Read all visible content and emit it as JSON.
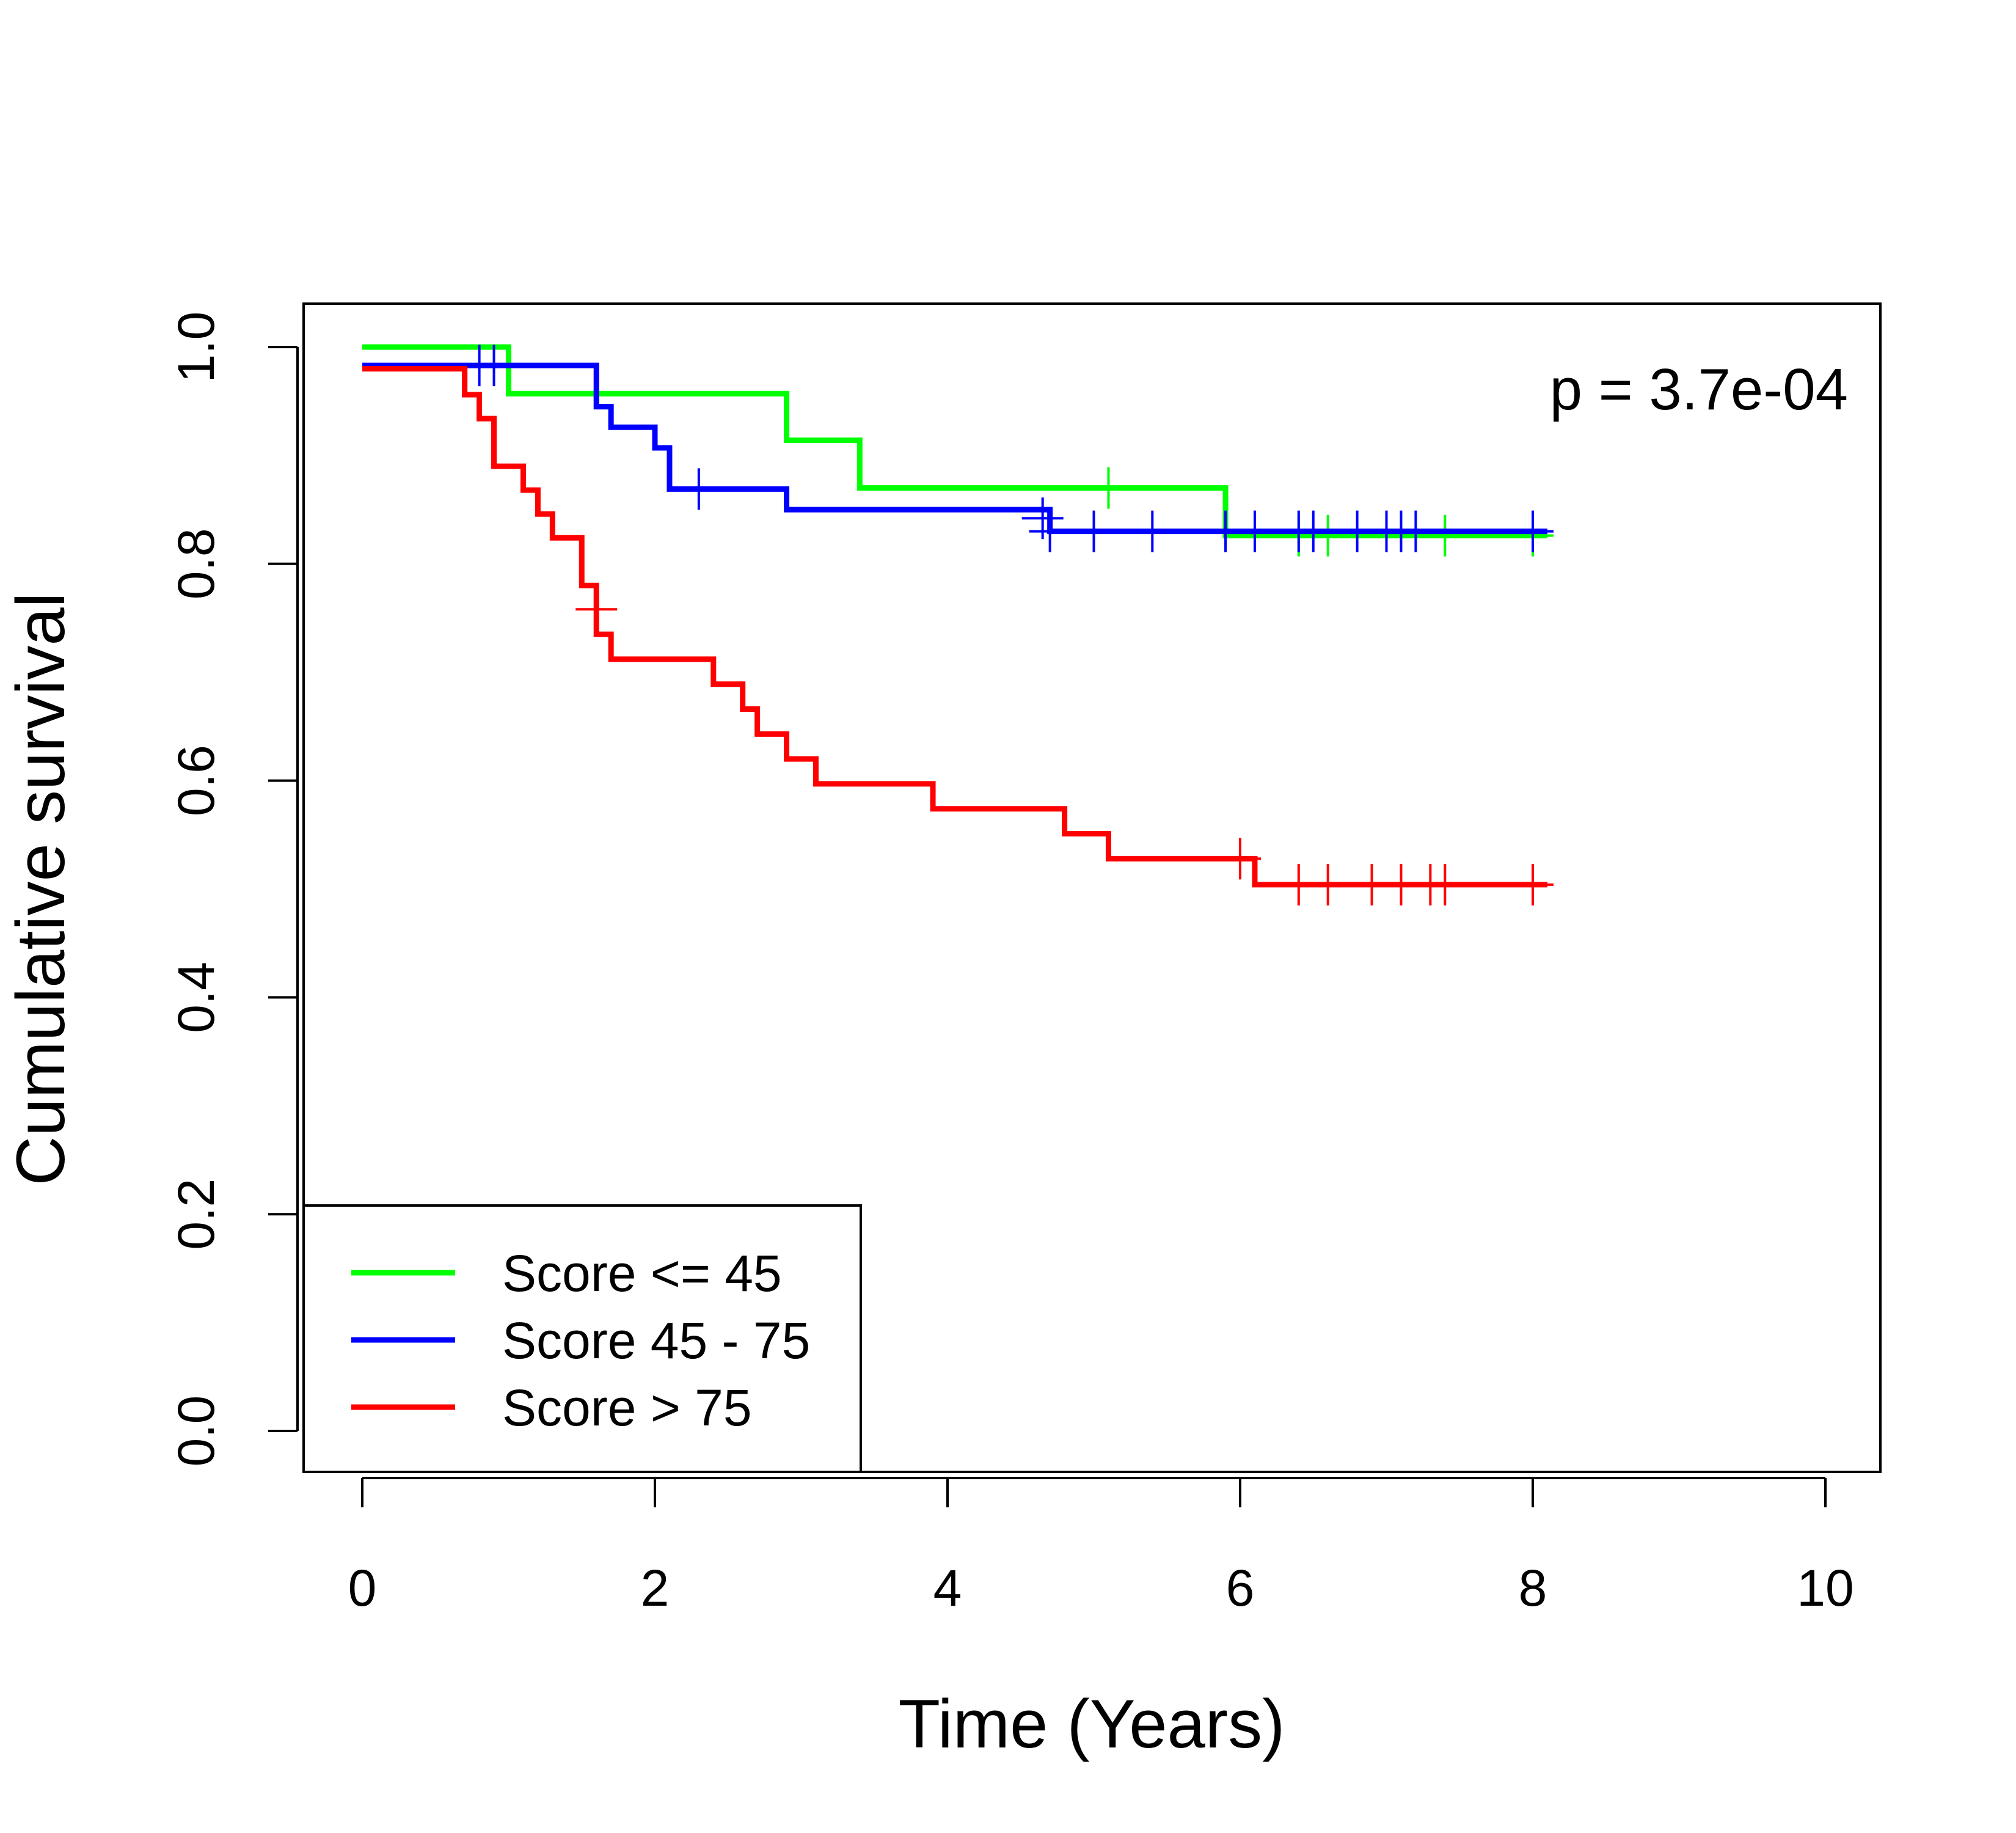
{
  "chart_data": {
    "type": "line",
    "subtype": "kaplan-meier",
    "title": "",
    "xlabel": "Time (Years)",
    "ylabel": "Cumulative survival",
    "xlim": [
      -0.4,
      10.4
    ],
    "ylim": [
      -0.04,
      1.04
    ],
    "x_ticks": [
      0,
      2,
      4,
      6,
      8,
      10
    ],
    "x_tick_labels": [
      "0",
      "2",
      "4",
      "6",
      "8",
      "10"
    ],
    "y_ticks": [
      0.0,
      0.2,
      0.4,
      0.6,
      0.8,
      1.0
    ],
    "y_tick_labels": [
      "0.0",
      "0.2",
      "0.4",
      "0.6",
      "0.8",
      "1.0"
    ],
    "grid": false,
    "legend_position": "bottom-left",
    "annotation": "p = 3.7e-04",
    "series": [
      {
        "name": "Score <= 45",
        "color": "#00ff00",
        "steps": [
          [
            0,
            1.0
          ],
          [
            1.0,
            0.957
          ],
          [
            2.9,
            0.914
          ],
          [
            3.4,
            0.87
          ],
          [
            5.9,
            0.826
          ],
          [
            8.1,
            0.826
          ]
        ],
        "censored": [
          [
            5.1,
            0.87
          ],
          [
            6.4,
            0.826
          ],
          [
            6.6,
            0.826
          ],
          [
            7.4,
            0.826
          ],
          [
            8.0,
            0.826
          ]
        ]
      },
      {
        "name": "Score 45 - 75",
        "color": "#0000ff",
        "steps": [
          [
            0,
            0.983
          ],
          [
            1.6,
            0.945
          ],
          [
            1.7,
            0.926
          ],
          [
            2.0,
            0.907
          ],
          [
            2.1,
            0.869
          ],
          [
            2.9,
            0.85
          ],
          [
            4.7,
            0.83
          ],
          [
            8.1,
            0.83
          ]
        ],
        "censored": [
          [
            0.8,
            0.983
          ],
          [
            0.9,
            0.983
          ],
          [
            2.3,
            0.869
          ],
          [
            4.65,
            0.842
          ],
          [
            4.7,
            0.83
          ],
          [
            5.0,
            0.83
          ],
          [
            5.4,
            0.83
          ],
          [
            5.9,
            0.83
          ],
          [
            6.1,
            0.83
          ],
          [
            6.4,
            0.83
          ],
          [
            6.5,
            0.83
          ],
          [
            6.8,
            0.83
          ],
          [
            7.0,
            0.83
          ],
          [
            7.1,
            0.83
          ],
          [
            7.2,
            0.83
          ],
          [
            8.0,
            0.83
          ]
        ]
      },
      {
        "name": "Score > 75",
        "color": "#ff0000",
        "steps": [
          [
            0,
            0.98
          ],
          [
            0.7,
            0.956
          ],
          [
            0.8,
            0.934
          ],
          [
            0.9,
            0.89
          ],
          [
            1.1,
            0.868
          ],
          [
            1.2,
            0.846
          ],
          [
            1.3,
            0.824
          ],
          [
            1.5,
            0.78
          ],
          [
            1.6,
            0.735
          ],
          [
            1.7,
            0.712
          ],
          [
            2.4,
            0.689
          ],
          [
            2.6,
            0.666
          ],
          [
            2.7,
            0.643
          ],
          [
            2.9,
            0.62
          ],
          [
            3.1,
            0.597
          ],
          [
            3.9,
            0.574
          ],
          [
            4.8,
            0.551
          ],
          [
            5.1,
            0.528
          ],
          [
            6.1,
            0.504
          ],
          [
            8.1,
            0.504
          ]
        ],
        "censored": [
          [
            1.6,
            0.758
          ],
          [
            6.0,
            0.528
          ],
          [
            6.4,
            0.504
          ],
          [
            6.6,
            0.504
          ],
          [
            6.9,
            0.504
          ],
          [
            7.1,
            0.504
          ],
          [
            7.3,
            0.504
          ],
          [
            7.4,
            0.504
          ],
          [
            8.0,
            0.504
          ]
        ]
      }
    ]
  }
}
